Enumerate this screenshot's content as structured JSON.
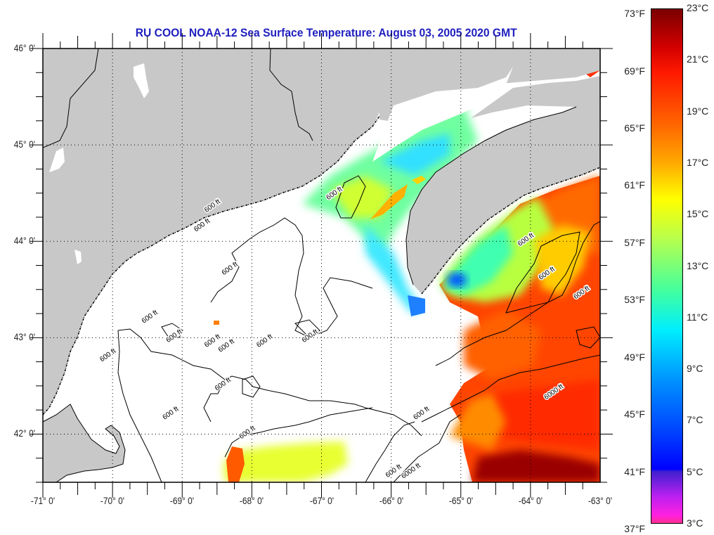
{
  "title": "RU COOL  NOAA-12  Sea Surface Temperature:  August 03, 2005 2020 GMT",
  "map": {
    "lon_range": [
      -71,
      -63
    ],
    "lat_range": [
      41.5,
      46.0
    ],
    "land_color": "#c8c8c8",
    "cloud_color": "#ffffff",
    "lat_labels": [
      "46° 0'",
      "45° 0'",
      "44° 0'",
      "43° 0'",
      "42° 0'"
    ],
    "lat_values": [
      46,
      45,
      44,
      43,
      42
    ],
    "lon_labels": [
      "-71° 0'",
      "-70° 0'",
      "-69° 0'",
      "-68° 0'",
      "-67° 0'",
      "-66° 0'",
      "-65° 0'",
      "-64° 0'",
      "-63° 0'"
    ],
    "lon_values": [
      -71,
      -70,
      -69,
      -68,
      -67,
      -66,
      -65,
      -64,
      -63
    ],
    "contour_labels": [
      {
        "text": "600 ft",
        "lon": -68.55,
        "lat": 44.35
      },
      {
        "text": "600 ft",
        "lon": -68.7,
        "lat": 44.15
      },
      {
        "text": "600 ft",
        "lon": -66.8,
        "lat": 44.48
      },
      {
        "text": "600 ft",
        "lon": -68.3,
        "lat": 43.7
      },
      {
        "text": "600 ft",
        "lon": -64.05,
        "lat": 44.0
      },
      {
        "text": "600 ft",
        "lon": -63.75,
        "lat": 43.65
      },
      {
        "text": "600 ft",
        "lon": -63.25,
        "lat": 43.45
      },
      {
        "text": "600 ft",
        "lon": -69.45,
        "lat": 43.2
      },
      {
        "text": "600 ft",
        "lon": -70.05,
        "lat": 42.8
      },
      {
        "text": "600 ft",
        "lon": -69.1,
        "lat": 43.0
      },
      {
        "text": "600 ft",
        "lon": -68.55,
        "lat": 42.95
      },
      {
        "text": "600 ft",
        "lon": -68.35,
        "lat": 42.9
      },
      {
        "text": "600 ft",
        "lon": -67.8,
        "lat": 42.95
      },
      {
        "text": "600 ft",
        "lon": -67.15,
        "lat": 43.0
      },
      {
        "text": "600 ft",
        "lon": -68.4,
        "lat": 42.5
      },
      {
        "text": "600 ft",
        "lon": -69.15,
        "lat": 42.2
      },
      {
        "text": "600 ft",
        "lon": -68.05,
        "lat": 42.0
      },
      {
        "text": "600 ft",
        "lon": -65.55,
        "lat": 42.2
      },
      {
        "text": "600 ft",
        "lon": -65.95,
        "lat": 41.6
      },
      {
        "text": "6000 ft",
        "lon": -65.7,
        "lat": 41.6
      },
      {
        "text": "6000 ft",
        "lon": -63.65,
        "lat": 42.42
      }
    ]
  },
  "colorbar": {
    "range_c": [
      3,
      23
    ],
    "f_labels": [
      "73°F",
      "69°F",
      "65°F",
      "61°F",
      "57°F",
      "53°F",
      "49°F",
      "45°F",
      "41°F",
      "37°F"
    ],
    "f_values": [
      73,
      69,
      65,
      61,
      57,
      53,
      49,
      45,
      41,
      37
    ],
    "c_labels": [
      "23°C",
      "21°C",
      "19°C",
      "17°C",
      "15°C",
      "13°C",
      "11°C",
      "9°C",
      "7°C",
      "5°C",
      "3°C"
    ],
    "c_values": [
      23,
      21,
      19,
      17,
      15,
      13,
      11,
      9,
      7,
      5,
      3
    ],
    "stops": [
      {
        "c": 23,
        "color": "#7a0000"
      },
      {
        "c": 21.5,
        "color": "#d40000"
      },
      {
        "c": 20.5,
        "color": "#ff1a00"
      },
      {
        "c": 18.5,
        "color": "#ff6600"
      },
      {
        "c": 17,
        "color": "#ffaa00"
      },
      {
        "c": 15.6,
        "color": "#ffff00"
      },
      {
        "c": 14,
        "color": "#b4ff50"
      },
      {
        "c": 12,
        "color": "#40ffa0"
      },
      {
        "c": 10.5,
        "color": "#00eeff"
      },
      {
        "c": 8.5,
        "color": "#0090ff"
      },
      {
        "c": 6.5,
        "color": "#0040ff"
      },
      {
        "c": 5.1,
        "color": "#0000ff"
      },
      {
        "c": 5.0,
        "color": "#4020d0"
      },
      {
        "c": 4.0,
        "color": "#c020f0"
      },
      {
        "c": 3.3,
        "color": "#ff20e0"
      },
      {
        "c": 3.0,
        "color": "#ff3090"
      }
    ]
  }
}
